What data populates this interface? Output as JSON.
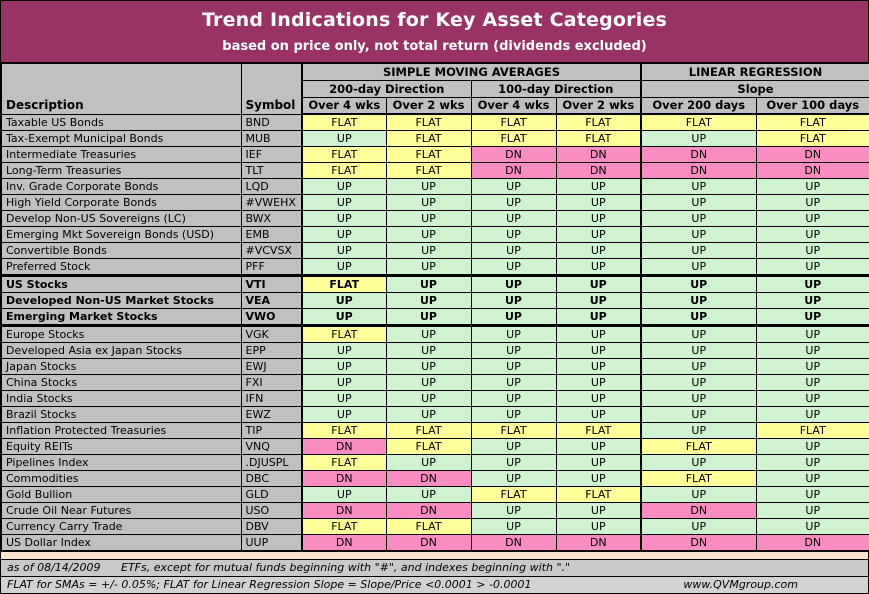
{
  "colors": {
    "title_bg": "#993366",
    "header_bg": "#C0C0C0",
    "up": "#CFF2D0",
    "flat": "#FFFF99",
    "dn": "#F98CC0",
    "separator": "#FBE3CF",
    "footer1_bg": "#C9C9C9",
    "footer2_bg": "#D3D3D3"
  },
  "footer": {
    "as_of": "as of 08/14/2009",
    "note1": "ETFs, except for mutual funds beginning with \"#\", and indexes beginning with \".\"",
    "note2": "FLAT for SMAs = +/- 0.05%; FLAT for Linear Regression Slope = Slope/Price <0.0001 > -0.0001",
    "website": "www.QVMgroup.com"
  },
  "chart_data": {
    "type": "table",
    "title": "Trend Indications for Key Asset Categories",
    "subtitle": "based on price only, not total return (dividends excluded)",
    "fixed_columns": [
      "Description",
      "Symbol"
    ],
    "column_groups": [
      {
        "label": "SIMPLE MOVING AVERAGES",
        "subgroups": [
          {
            "label": "200-day Direction",
            "columns": [
              "Over 4 wks",
              "Over 2 wks"
            ]
          },
          {
            "label": "100-day Direction",
            "columns": [
              "Over 4 wks",
              "Over 2 wks"
            ]
          }
        ]
      },
      {
        "label": "LINEAR REGRESSION",
        "subgroups": [
          {
            "label": "Slope",
            "columns": [
              "Over 200 days",
              "Over 100 days"
            ]
          }
        ]
      }
    ],
    "value_domain": [
      "UP",
      "FLAT",
      "DN"
    ],
    "rows": [
      {
        "description": "Taxable US Bonds",
        "symbol": "BND",
        "values": [
          "FLAT",
          "FLAT",
          "FLAT",
          "FLAT",
          "FLAT",
          "FLAT"
        ]
      },
      {
        "description": "Tax-Exempt Municipal Bonds",
        "symbol": "MUB",
        "values": [
          "UP",
          "FLAT",
          "FLAT",
          "FLAT",
          "UP",
          "FLAT"
        ]
      },
      {
        "description": "Intermediate Treasuries",
        "symbol": "IEF",
        "values": [
          "FLAT",
          "FLAT",
          "DN",
          "DN",
          "DN",
          "DN"
        ]
      },
      {
        "description": "Long-Term Treasuries",
        "symbol": "TLT",
        "values": [
          "FLAT",
          "FLAT",
          "DN",
          "DN",
          "DN",
          "DN"
        ]
      },
      {
        "description": "Inv. Grade Corporate Bonds",
        "symbol": "LQD",
        "values": [
          "UP",
          "UP",
          "UP",
          "UP",
          "UP",
          "UP"
        ]
      },
      {
        "description": "High Yield Corporate Bonds",
        "symbol": "#VWEHX",
        "values": [
          "UP",
          "UP",
          "UP",
          "UP",
          "UP",
          "UP"
        ]
      },
      {
        "description": "Develop Non-US Sovereigns (LC)",
        "symbol": "BWX",
        "values": [
          "UP",
          "UP",
          "UP",
          "UP",
          "UP",
          "UP"
        ]
      },
      {
        "description": "Emerging Mkt Sovereign Bonds (USD)",
        "symbol": "EMB",
        "values": [
          "UP",
          "UP",
          "UP",
          "UP",
          "UP",
          "UP"
        ]
      },
      {
        "description": "Convertible Bonds",
        "symbol": "#VCVSX",
        "values": [
          "UP",
          "UP",
          "UP",
          "UP",
          "UP",
          "UP"
        ]
      },
      {
        "description": "Preferred Stock",
        "symbol": "PFF",
        "values": [
          "UP",
          "UP",
          "UP",
          "UP",
          "UP",
          "UP"
        ]
      },
      {
        "description": "US Stocks",
        "symbol": "VTI",
        "bold": true,
        "values": [
          "FLAT",
          "UP",
          "UP",
          "UP",
          "UP",
          "UP"
        ]
      },
      {
        "description": "Developed Non-US Market Stocks",
        "symbol": "VEA",
        "bold": true,
        "values": [
          "UP",
          "UP",
          "UP",
          "UP",
          "UP",
          "UP"
        ]
      },
      {
        "description": "Emerging Market Stocks",
        "symbol": "VWO",
        "bold": true,
        "values": [
          "UP",
          "UP",
          "UP",
          "UP",
          "UP",
          "UP"
        ]
      },
      {
        "description": "Europe Stocks",
        "symbol": "VGK",
        "values": [
          "FLAT",
          "UP",
          "UP",
          "UP",
          "UP",
          "UP"
        ]
      },
      {
        "description": "Developed Asia ex Japan Stocks",
        "symbol": "EPP",
        "values": [
          "UP",
          "UP",
          "UP",
          "UP",
          "UP",
          "UP"
        ]
      },
      {
        "description": "Japan Stocks",
        "symbol": "EWJ",
        "values": [
          "UP",
          "UP",
          "UP",
          "UP",
          "UP",
          "UP"
        ]
      },
      {
        "description": "China Stocks",
        "symbol": "FXI",
        "values": [
          "UP",
          "UP",
          "UP",
          "UP",
          "UP",
          "UP"
        ]
      },
      {
        "description": "India Stocks",
        "symbol": "IFN",
        "values": [
          "UP",
          "UP",
          "UP",
          "UP",
          "UP",
          "UP"
        ]
      },
      {
        "description": "Brazil Stocks",
        "symbol": "EWZ",
        "values": [
          "UP",
          "UP",
          "UP",
          "UP",
          "UP",
          "UP"
        ]
      },
      {
        "description": "Inflation Protected Treasuries",
        "symbol": "TIP",
        "values": [
          "FLAT",
          "FLAT",
          "FLAT",
          "FLAT",
          "UP",
          "FLAT"
        ]
      },
      {
        "description": "Equity REITs",
        "symbol": "VNQ",
        "values": [
          "DN",
          "FLAT",
          "UP",
          "UP",
          "FLAT",
          "UP"
        ]
      },
      {
        "description": "Pipelines Index",
        "symbol": ".DJUSPL",
        "values": [
          "FLAT",
          "UP",
          "UP",
          "UP",
          "UP",
          "UP"
        ]
      },
      {
        "description": "Commodities",
        "symbol": "DBC",
        "values": [
          "DN",
          "DN",
          "UP",
          "UP",
          "FLAT",
          "UP"
        ]
      },
      {
        "description": "Gold Bullion",
        "symbol": "GLD",
        "values": [
          "UP",
          "UP",
          "FLAT",
          "FLAT",
          "UP",
          "UP"
        ]
      },
      {
        "description": "Crude Oil Near Futures",
        "symbol": "USO",
        "values": [
          "DN",
          "DN",
          "UP",
          "UP",
          "DN",
          "UP"
        ]
      },
      {
        "description": "Currency Carry Trade",
        "symbol": "DBV",
        "values": [
          "FLAT",
          "FLAT",
          "UP",
          "UP",
          "UP",
          "UP"
        ]
      },
      {
        "description": "US Dollar Index",
        "symbol": "UUP",
        "values": [
          "DN",
          "DN",
          "DN",
          "DN",
          "DN",
          "DN"
        ]
      }
    ]
  }
}
